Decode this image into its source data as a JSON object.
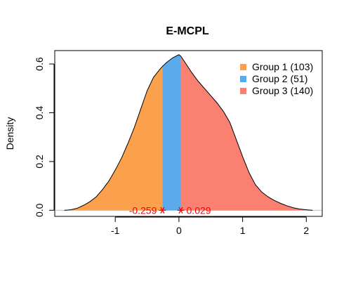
{
  "chart_data": {
    "type": "area",
    "title": "E-MCPL",
    "xlabel": "",
    "ylabel": "Density",
    "xlim": [
      -1.95,
      2.25
    ],
    "ylim": [
      -0.025,
      0.655
    ],
    "x_ticks": [
      -1,
      0,
      1,
      2
    ],
    "y_ticks": [
      0.0,
      0.2,
      0.4,
      0.6
    ],
    "x_tick_labels": [
      "-1",
      "0",
      "1",
      "2"
    ],
    "y_tick_labels": [
      "0.0",
      "0.2",
      "0.4",
      "0.6"
    ],
    "grid": false,
    "legend_position": "top-right",
    "density": {
      "x": [
        -1.8,
        -1.7,
        -1.6,
        -1.5,
        -1.4,
        -1.3,
        -1.2,
        -1.1,
        -1.0,
        -0.9,
        -0.8,
        -0.7,
        -0.6,
        -0.5,
        -0.4,
        -0.3,
        -0.259,
        -0.2,
        -0.1,
        0.0,
        0.029,
        0.1,
        0.2,
        0.3,
        0.4,
        0.5,
        0.6,
        0.7,
        0.8,
        0.9,
        1.0,
        1.1,
        1.2,
        1.3,
        1.4,
        1.5,
        1.6,
        1.7,
        1.8,
        1.9,
        2.0,
        2.1
      ],
      "y": [
        0.0,
        0.002,
        0.008,
        0.02,
        0.035,
        0.055,
        0.085,
        0.12,
        0.165,
        0.215,
        0.275,
        0.34,
        0.415,
        0.49,
        0.545,
        0.578,
        0.59,
        0.605,
        0.625,
        0.638,
        0.632,
        0.605,
        0.565,
        0.53,
        0.5,
        0.47,
        0.44,
        0.405,
        0.36,
        0.29,
        0.22,
        0.155,
        0.105,
        0.075,
        0.055,
        0.04,
        0.028,
        0.018,
        0.01,
        0.005,
        0.002,
        0.0
      ]
    },
    "groups": [
      {
        "name": "Group 1 (103)",
        "from": -1.8,
        "to": -0.259,
        "color": "#FBA14D"
      },
      {
        "name": "Group 2 (51)",
        "from": -0.259,
        "to": 0.029,
        "color": "#5BABEC"
      },
      {
        "name": "Group 3 (140)",
        "from": 0.029,
        "to": 2.1,
        "color": "#FA8072"
      }
    ],
    "cutpoints": [
      {
        "x": -0.259,
        "label": "-0.259"
      },
      {
        "x": 0.029,
        "label": "0.029"
      }
    ],
    "cutpoint_color": "#FF0000",
    "baseline_color": "#BEBEBE"
  }
}
